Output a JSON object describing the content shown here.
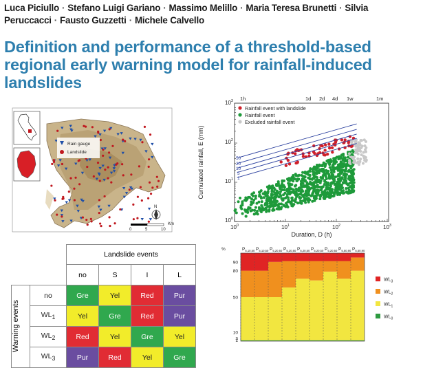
{
  "authors": [
    "Luca Piciullo",
    "Stefano Luigi Gariano",
    "Massimo Melillo",
    "Maria Teresa Brunetti",
    "Silvia Peruccacci",
    "Fausto Guzzetti",
    "Michele Calvello"
  ],
  "separator": "·",
  "title": "Definition and performance of a threshold-based regional early warning model for rainfall-induced landslides",
  "map": {
    "legend": {
      "gauge": "Rain gauge",
      "landslide": "Landslide"
    },
    "scale_labels": [
      "0",
      "5",
      "10"
    ],
    "scale_unit": "Km",
    "north": "N",
    "colors": {
      "gauge": "#1f4fa8",
      "landslide": "#c0181f",
      "relief": "#c9b48a"
    }
  },
  "scatter": {
    "ylabel": "Cumulated rainfall, E (mm)",
    "xlabel": "Duration, D (h)",
    "top_ticks": [
      "1h",
      "1d",
      "2d",
      "4d",
      "1w",
      "1m"
    ],
    "legend": [
      "Rainfall event with landslide",
      "Rainfall event",
      "Excluded rainfall event"
    ],
    "line_labels": [
      "50",
      "20",
      "10",
      "5",
      "1"
    ],
    "y_ticks": [
      "10",
      "10",
      "10",
      "10"
    ],
    "y_exp": [
      "0",
      "1",
      "2",
      "3"
    ],
    "x_ticks": [
      "10",
      "10",
      "10",
      "10"
    ],
    "x_exp": [
      "0",
      "1",
      "2",
      "3"
    ],
    "colors": {
      "landslide": "#d0202a",
      "event": "#1e9a3a",
      "excluded": "#c8c8c8",
      "threshold": "#2a3f9e"
    }
  },
  "table": {
    "col_header": "Landslide events",
    "row_header": "Warning events",
    "cols": [
      "no",
      "S",
      "I",
      "L"
    ],
    "rows": [
      {
        "label": "no",
        "sub": "",
        "cells": [
          "Gre",
          "Yel",
          "Red",
          "Pur"
        ]
      },
      {
        "label": "WL",
        "sub": "1",
        "cells": [
          "Yel",
          "Gre",
          "Red",
          "Pur"
        ]
      },
      {
        "label": "WL",
        "sub": "2",
        "cells": [
          "Red",
          "Yel",
          "Gre",
          "Yel"
        ]
      },
      {
        "label": "WL",
        "sub": "3",
        "cells": [
          "Pur",
          "Red",
          "Yel",
          "Gre"
        ]
      }
    ]
  },
  "bars": {
    "unit": "%",
    "y_ticks": [
      "90",
      "80",
      "50",
      "10",
      "3",
      "1"
    ],
    "top_labels": [
      "P",
      "P",
      "P",
      "P",
      "P",
      "P",
      "P",
      "P",
      "P"
    ],
    "top_subs": [
      "5,10,50",
      "5,10,50",
      "5,20,50",
      "5,20,50",
      "5,20,50",
      "5,20,50",
      "5,20,50",
      "5,50,90",
      "5,50,90"
    ],
    "legend": [
      {
        "label": "WL",
        "sub": "3"
      },
      {
        "label": "WL",
        "sub": "2"
      },
      {
        "label": "WL",
        "sub": "1"
      },
      {
        "label": "WL",
        "sub": "0"
      }
    ],
    "colors": {
      "WL3": "#e02424",
      "WL2": "#f0901e",
      "WL1": "#f2e640",
      "WL0": "#2e9a40"
    }
  }
}
